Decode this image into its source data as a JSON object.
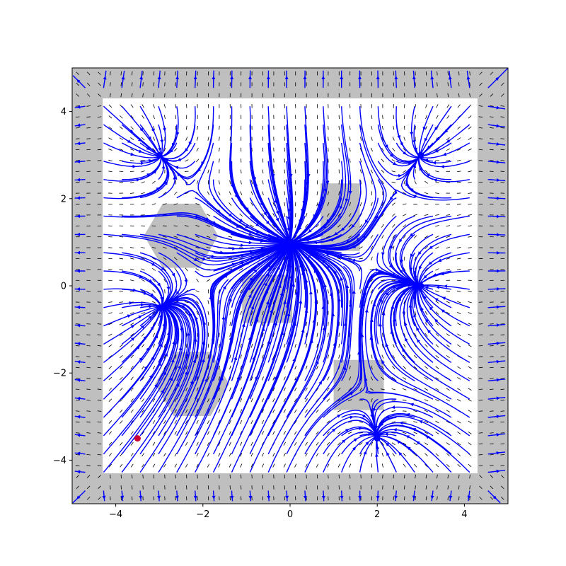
{
  "chart_data": {
    "type": "streamplot",
    "title": "",
    "xlabel": "",
    "ylabel": "",
    "xlim": [
      -5,
      5
    ],
    "ylim": [
      -5,
      5
    ],
    "grid": false,
    "x_ticks": [
      -4,
      -2,
      0,
      2,
      4
    ],
    "y_ticks": [
      -4,
      -2,
      0,
      2,
      4
    ],
    "x_tick_labels": [
      "−4",
      "−2",
      "0",
      "2",
      "4"
    ],
    "y_tick_labels": [
      "−4",
      "−2",
      "0",
      "2",
      "4"
    ],
    "colors": {
      "streamline": "#0000ff",
      "obstacle": "#bfbfbf",
      "quiver": "#000000",
      "start_point": "#cc0033",
      "goal_point": "#0000ff"
    },
    "boundary_walls": [
      {
        "x0": -5,
        "x1": 5,
        "y0": 4.3,
        "y1": 5
      },
      {
        "x0": -5,
        "x1": 5,
        "y0": -5,
        "y1": -4.3
      },
      {
        "x0": -5,
        "x1": -4.3,
        "y0": -5,
        "y1": 5
      },
      {
        "x0": 4.3,
        "x1": 5,
        "y0": -5,
        "y1": 5
      }
    ],
    "rect_obstacles": [
      {
        "x0": 0.7,
        "x1": 1.6,
        "y0": 0.8,
        "y1": 2.35
      },
      {
        "x0": -1.1,
        "x1": 0.05,
        "y0": -0.85,
        "y1": 0.25
      },
      {
        "x0": 1.0,
        "x1": 2.15,
        "y0": -2.85,
        "y1": -1.7
      }
    ],
    "hex_obstacles": [
      {
        "cx": -2.5,
        "cy": 1.15,
        "r": 0.85
      },
      {
        "cx": -2.25,
        "cy": -2.25,
        "r": 0.85
      }
    ],
    "circle_region": {
      "cx": 3.0,
      "cy": 3.0,
      "r": 0.75
    },
    "attractors": [
      {
        "x": -3.0,
        "y": 3.0
      },
      {
        "x": 3.0,
        "y": 3.0
      },
      {
        "x": -3.0,
        "y": -0.5
      },
      {
        "x": 3.0,
        "y": 0.0
      },
      {
        "x": 2.0,
        "y": -3.5
      },
      {
        "x": 0.0,
        "y": 1.0
      }
    ],
    "start_point": {
      "x": -3.5,
      "y": -3.5
    }
  }
}
